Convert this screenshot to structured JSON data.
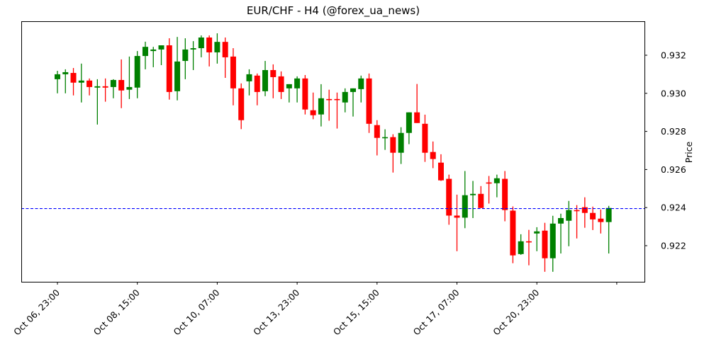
{
  "chart_data": {
    "type": "candlestick",
    "title": "EUR/CHF - H4 (@forex_ua_news)",
    "xlabel": "",
    "ylabel": "Price",
    "ylim": [
      0.92015,
      0.93375
    ],
    "y_ticks": [
      "0.922",
      "0.924",
      "0.926",
      "0.928",
      "0.930",
      "0.932"
    ],
    "x_ticks": [
      {
        "label": "Oct 06, 23:00",
        "index": 0
      },
      {
        "label": "Oct 08, 15:00",
        "index": 10
      },
      {
        "label": "Oct 10, 07:00",
        "index": 20
      },
      {
        "label": "Oct 13, 23:00",
        "index": 30
      },
      {
        "label": "Oct 15, 15:00",
        "index": 40
      },
      {
        "label": "Oct 17, 07:00",
        "index": 50
      },
      {
        "label": "Oct 20, 23:00",
        "index": 60
      },
      {
        "label": "",
        "index": 70
      }
    ],
    "reference_line": {
      "value": 0.92395,
      "color": "#0000ff",
      "style": "dashed"
    },
    "grid": false,
    "up_color": "#008000",
    "down_color": "#ff0000",
    "candles": [
      {
        "o": 0.93074,
        "h": 0.93118,
        "l": 0.93,
        "c": 0.931
      },
      {
        "o": 0.931,
        "h": 0.93126,
        "l": 0.93,
        "c": 0.93111
      },
      {
        "o": 0.93107,
        "h": 0.93133,
        "l": 0.92989,
        "c": 0.93056
      },
      {
        "o": 0.93056,
        "h": 0.93156,
        "l": 0.92952,
        "c": 0.93067
      },
      {
        "o": 0.93067,
        "h": 0.93078,
        "l": 0.92989,
        "c": 0.93033
      },
      {
        "o": 0.9303,
        "h": 0.93074,
        "l": 0.92836,
        "c": 0.93037
      },
      {
        "o": 0.93037,
        "h": 0.93078,
        "l": 0.92956,
        "c": 0.9303
      },
      {
        "o": 0.93033,
        "h": 0.93074,
        "l": 0.92974,
        "c": 0.9307
      },
      {
        "o": 0.9307,
        "h": 0.93178,
        "l": 0.92922,
        "c": 0.93015
      },
      {
        "o": 0.93019,
        "h": 0.93193,
        "l": 0.9297,
        "c": 0.93033
      },
      {
        "o": 0.9303,
        "h": 0.93222,
        "l": 0.92974,
        "c": 0.93196
      },
      {
        "o": 0.93196,
        "h": 0.93271,
        "l": 0.93126,
        "c": 0.93244
      },
      {
        "o": 0.93222,
        "h": 0.93244,
        "l": 0.93137,
        "c": 0.9323
      },
      {
        "o": 0.9323,
        "h": 0.93252,
        "l": 0.93148,
        "c": 0.93252
      },
      {
        "o": 0.93252,
        "h": 0.93289,
        "l": 0.92967,
        "c": 0.93007
      },
      {
        "o": 0.93011,
        "h": 0.93296,
        "l": 0.92963,
        "c": 0.93167
      },
      {
        "o": 0.9317,
        "h": 0.93289,
        "l": 0.93074,
        "c": 0.9323
      },
      {
        "o": 0.9323,
        "h": 0.93274,
        "l": 0.93122,
        "c": 0.93237
      },
      {
        "o": 0.93237,
        "h": 0.93304,
        "l": 0.93189,
        "c": 0.93293
      },
      {
        "o": 0.93293,
        "h": 0.93304,
        "l": 0.93141,
        "c": 0.93215
      },
      {
        "o": 0.93215,
        "h": 0.93315,
        "l": 0.93156,
        "c": 0.9327
      },
      {
        "o": 0.9327,
        "h": 0.93293,
        "l": 0.93081,
        "c": 0.93189
      },
      {
        "o": 0.93193,
        "h": 0.93237,
        "l": 0.92937,
        "c": 0.93026
      },
      {
        "o": 0.93026,
        "h": 0.93052,
        "l": 0.92812,
        "c": 0.92859
      },
      {
        "o": 0.93063,
        "h": 0.93126,
        "l": 0.92989,
        "c": 0.931
      },
      {
        "o": 0.93093,
        "h": 0.93104,
        "l": 0.92937,
        "c": 0.93007
      },
      {
        "o": 0.93011,
        "h": 0.9317,
        "l": 0.92985,
        "c": 0.93122
      },
      {
        "o": 0.93122,
        "h": 0.93152,
        "l": 0.92974,
        "c": 0.93085
      },
      {
        "o": 0.93089,
        "h": 0.93115,
        "l": 0.9297,
        "c": 0.93007
      },
      {
        "o": 0.93026,
        "h": 0.93048,
        "l": 0.92952,
        "c": 0.93048
      },
      {
        "o": 0.93026,
        "h": 0.93089,
        "l": 0.92952,
        "c": 0.93078
      },
      {
        "o": 0.93078,
        "h": 0.93096,
        "l": 0.92889,
        "c": 0.92915
      },
      {
        "o": 0.92911,
        "h": 0.93004,
        "l": 0.92864,
        "c": 0.92885
      },
      {
        "o": 0.92889,
        "h": 0.93048,
        "l": 0.92826,
        "c": 0.92974
      },
      {
        "o": 0.9297,
        "h": 0.93019,
        "l": 0.92856,
        "c": 0.92967
      },
      {
        "o": 0.9297,
        "h": 0.93004,
        "l": 0.92815,
        "c": 0.92967
      },
      {
        "o": 0.92952,
        "h": 0.93026,
        "l": 0.929,
        "c": 0.93007
      },
      {
        "o": 0.93007,
        "h": 0.93026,
        "l": 0.92878,
        "c": 0.93026
      },
      {
        "o": 0.93022,
        "h": 0.93093,
        "l": 0.92952,
        "c": 0.93078
      },
      {
        "o": 0.93078,
        "h": 0.93104,
        "l": 0.92792,
        "c": 0.9284
      },
      {
        "o": 0.92833,
        "h": 0.92859,
        "l": 0.92674,
        "c": 0.92766
      },
      {
        "o": 0.92766,
        "h": 0.92811,
        "l": 0.92703,
        "c": 0.9277
      },
      {
        "o": 0.9277,
        "h": 0.92785,
        "l": 0.92584,
        "c": 0.92688
      },
      {
        "o": 0.92688,
        "h": 0.92822,
        "l": 0.92629,
        "c": 0.92792
      },
      {
        "o": 0.92792,
        "h": 0.929,
        "l": 0.92733,
        "c": 0.929
      },
      {
        "o": 0.929,
        "h": 0.93049,
        "l": 0.92844,
        "c": 0.92844
      },
      {
        "o": 0.9284,
        "h": 0.92888,
        "l": 0.9264,
        "c": 0.92688
      },
      {
        "o": 0.92692,
        "h": 0.92747,
        "l": 0.92607,
        "c": 0.92655
      },
      {
        "o": 0.92636,
        "h": 0.9268,
        "l": 0.9254,
        "c": 0.92543
      },
      {
        "o": 0.92551,
        "h": 0.92573,
        "l": 0.9231,
        "c": 0.92358
      },
      {
        "o": 0.92358,
        "h": 0.92468,
        "l": 0.92171,
        "c": 0.92347
      },
      {
        "o": 0.92347,
        "h": 0.92592,
        "l": 0.92292,
        "c": 0.92465
      },
      {
        "o": 0.92465,
        "h": 0.9254,
        "l": 0.92345,
        "c": 0.92472
      },
      {
        "o": 0.92472,
        "h": 0.92513,
        "l": 0.92398,
        "c": 0.92398
      },
      {
        "o": 0.92532,
        "h": 0.92566,
        "l": 0.92421,
        "c": 0.92528
      },
      {
        "o": 0.92528,
        "h": 0.92573,
        "l": 0.92454,
        "c": 0.92554
      },
      {
        "o": 0.92551,
        "h": 0.92592,
        "l": 0.92328,
        "c": 0.92387
      },
      {
        "o": 0.92384,
        "h": 0.92406,
        "l": 0.92108,
        "c": 0.92149
      },
      {
        "o": 0.92156,
        "h": 0.9226,
        "l": 0.92152,
        "c": 0.92223
      },
      {
        "o": 0.92223,
        "h": 0.92283,
        "l": 0.92097,
        "c": 0.92219
      },
      {
        "o": 0.92264,
        "h": 0.92297,
        "l": 0.92171,
        "c": 0.92275
      },
      {
        "o": 0.92279,
        "h": 0.9232,
        "l": 0.92063,
        "c": 0.92134
      },
      {
        "o": 0.92134,
        "h": 0.92357,
        "l": 0.92063,
        "c": 0.92316
      },
      {
        "o": 0.92316,
        "h": 0.92368,
        "l": 0.92159,
        "c": 0.92345
      },
      {
        "o": 0.92331,
        "h": 0.92435,
        "l": 0.92197,
        "c": 0.92387
      },
      {
        "o": 0.92387,
        "h": 0.92413,
        "l": 0.92238,
        "c": 0.92383
      },
      {
        "o": 0.92402,
        "h": 0.92454,
        "l": 0.92294,
        "c": 0.92372
      },
      {
        "o": 0.92372,
        "h": 0.92405,
        "l": 0.92282,
        "c": 0.92338
      },
      {
        "o": 0.92342,
        "h": 0.9239,
        "l": 0.92264,
        "c": 0.92324
      },
      {
        "o": 0.92324,
        "h": 0.92409,
        "l": 0.92159,
        "c": 0.92398
      }
    ]
  }
}
